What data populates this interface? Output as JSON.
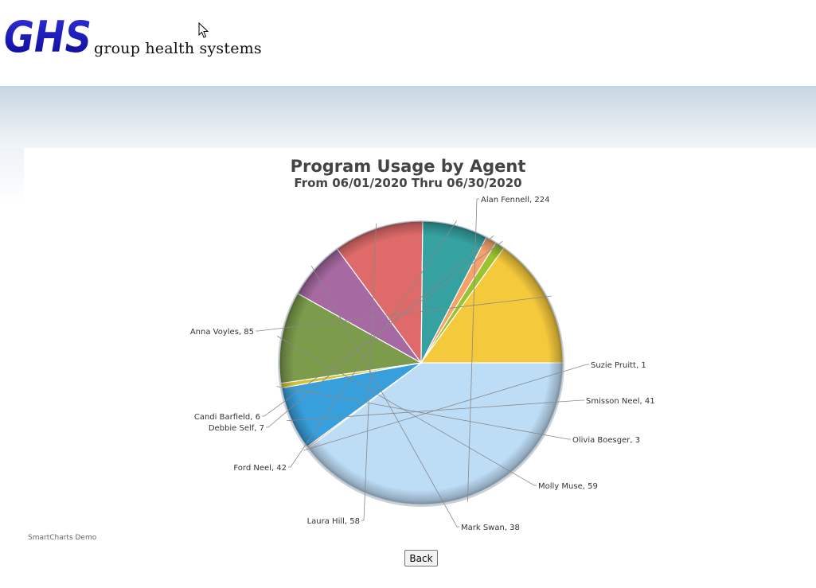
{
  "header": {
    "logo_text": "GHS",
    "tagline": "group health systems"
  },
  "chart_data": {
    "type": "pie",
    "title": "Program Usage by Agent",
    "subtitle": "From 06/01/2020 Thru 06/30/2020",
    "slices": [
      {
        "label": "Alan Fennell",
        "value": 224,
        "color": "#bddcf6"
      },
      {
        "label": "Suzie Pruitt",
        "value": 1,
        "color": "#e0707a"
      },
      {
        "label": "Smisson Neel",
        "value": 41,
        "color": "#379fdc"
      },
      {
        "label": "Olivia Boesger",
        "value": 3,
        "color": "#d6c230"
      },
      {
        "label": "Molly Muse",
        "value": 59,
        "color": "#7c9c4c"
      },
      {
        "label": "Mark Swan",
        "value": 38,
        "color": "#a669a1"
      },
      {
        "label": "Laura Hill",
        "value": 58,
        "color": "#de6b6a"
      },
      {
        "label": "Ford Neel",
        "value": 42,
        "color": "#35a1a0"
      },
      {
        "label": "Debbie Self",
        "value": 7,
        "color": "#f6a16a"
      },
      {
        "label": "Candi Barfield",
        "value": 6,
        "color": "#9bc22f"
      },
      {
        "label": "Anna Voyles",
        "value": 85,
        "color": "#f5c93c"
      }
    ]
  },
  "footer": {
    "note": "SmartCharts Demo",
    "back_label": "Back"
  }
}
